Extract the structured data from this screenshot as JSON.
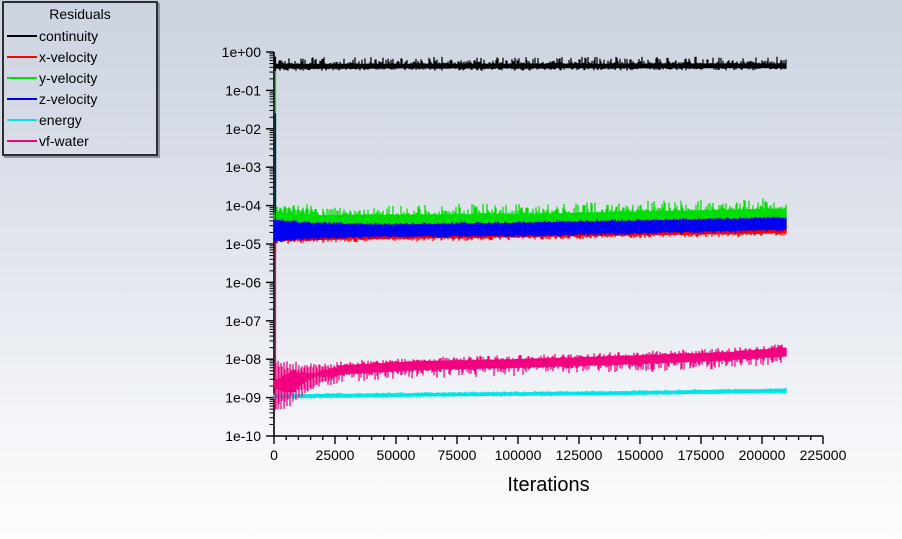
{
  "window": {
    "background_top": "#ccd3e0",
    "background_mid": "#e6e9f0",
    "background_bottom": "#fdfdfe"
  },
  "legend": {
    "title": "Residuals",
    "items": [
      {
        "label": "continuity",
        "color": "#000000"
      },
      {
        "label": "x-velocity",
        "color": "#ff0000"
      },
      {
        "label": "y-velocity",
        "color": "#00dd00"
      },
      {
        "label": "z-velocity",
        "color": "#0000f0"
      },
      {
        "label": "energy",
        "color": "#00e6e6"
      },
      {
        "label": "vf-water",
        "color": "#f2007f"
      }
    ]
  },
  "chart_data": {
    "type": "line",
    "title": "Residuals",
    "xlabel": "Iterations",
    "ylabel": "",
    "grid": false,
    "legend_position": "top-left",
    "axes": {
      "x": {
        "min": 0,
        "max": 225000,
        "major_step": 25000,
        "minor_step": 5000,
        "tick_labels": [
          "0",
          "25000",
          "50000",
          "75000",
          "100000",
          "125000",
          "150000",
          "175000",
          "200000",
          "225000"
        ]
      },
      "y": {
        "scale": "log",
        "top_exp": 0,
        "bottom_exp": -10,
        "tick_labels": [
          "1e+00",
          "1e-01",
          "1e-02",
          "1e-03",
          "1e-04",
          "1e-05",
          "1e-06",
          "1e-07",
          "1e-08",
          "1e-09",
          "1e-10"
        ]
      }
    },
    "series": [
      {
        "name": "continuity",
        "color": "#000000",
        "x_end": 210000,
        "start_spike": [
          -0.12,
          -0.5
        ],
        "band": [
          [
            0,
            -0.31,
            -0.43
          ],
          [
            210000,
            -0.3,
            -0.42
          ]
        ],
        "spike_top": 0.18,
        "spike_bot": 0.06
      },
      {
        "name": "x-velocity",
        "color": "#ff0000",
        "x_end": 210000,
        "start_spike": [
          -4.72,
          -5.42
        ],
        "band": [
          [
            0,
            -4.72,
            -4.92
          ],
          [
            30000,
            -4.7,
            -4.88
          ],
          [
            100000,
            -4.62,
            -4.82
          ],
          [
            210000,
            -4.5,
            -4.72
          ]
        ],
        "spike_top": 0.04,
        "spike_bot": 0.08
      },
      {
        "name": "y-velocity",
        "color": "#00dd00",
        "x_end": 210000,
        "start_spike": [
          -0.5,
          -4.3
        ],
        "band": [
          [
            0,
            -4.2,
            -4.62
          ],
          [
            15000,
            -4.25,
            -4.6
          ],
          [
            100000,
            -4.22,
            -4.58
          ],
          [
            210000,
            -4.08,
            -4.5
          ]
        ],
        "spike_top": 0.28,
        "spike_bot": 0.03,
        "osc": {
          "period": 1800,
          "until": 18000,
          "mode": "top"
        }
      },
      {
        "name": "z-velocity",
        "color": "#0000f0",
        "x_end": 210000,
        "start_spike": [
          -1.6,
          -4.9
        ],
        "band": [
          [
            0,
            -4.38,
            -4.92
          ],
          [
            12000,
            -4.45,
            -4.85
          ],
          [
            40000,
            -4.5,
            -4.8
          ],
          [
            100000,
            -4.45,
            -4.78
          ],
          [
            210000,
            -4.32,
            -4.62
          ]
        ],
        "spike_top": 0.05,
        "spike_bot": 0.06
      },
      {
        "name": "energy",
        "color": "#00e6e6",
        "x_end": 210000,
        "band": [
          [
            0,
            -8.92,
            -9.02
          ],
          [
            60000,
            -8.88,
            -8.97
          ],
          [
            140000,
            -8.84,
            -8.93
          ],
          [
            210000,
            -8.77,
            -8.87
          ]
        ],
        "spike_top": 0.03,
        "spike_bot": 0.02
      },
      {
        "name": "vf-water",
        "color": "#f2007f",
        "x_end": 210000,
        "start_spike": [
          -5.05,
          -9.1
        ],
        "band": [
          [
            400,
            -8.1,
            -9.2
          ],
          [
            6000,
            -8.15,
            -9.05
          ],
          [
            12000,
            -8.2,
            -8.75
          ],
          [
            20000,
            -8.2,
            -8.5
          ],
          [
            30000,
            -8.15,
            -8.38
          ],
          [
            60000,
            -8.05,
            -8.28
          ],
          [
            100000,
            -8.0,
            -8.22
          ],
          [
            150000,
            -7.9,
            -8.12
          ],
          [
            185000,
            -7.82,
            -8.03
          ],
          [
            210000,
            -7.7,
            -7.92
          ]
        ],
        "spike_top": 0.12,
        "spike_bot": 0.22,
        "osc": {
          "period": 1200,
          "until": 26000,
          "mode": "both"
        }
      }
    ]
  }
}
